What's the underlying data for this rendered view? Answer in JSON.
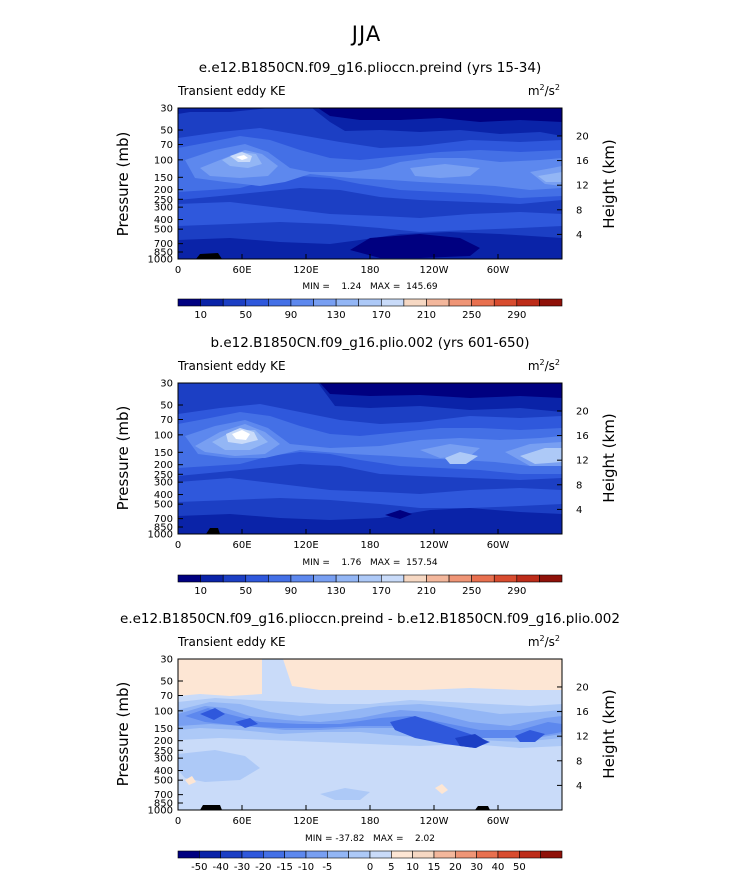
{
  "figure": {
    "super_title": "JJA",
    "ke_colors": [
      "#000080",
      "#0a23a8",
      "#1c3fc4",
      "#2f58dc",
      "#4470e6",
      "#5d88ee",
      "#789ff2",
      "#93b6f5",
      "#adc9f7",
      "#c9dbf9",
      "#f6d8c3",
      "#f3b79c",
      "#ef9576",
      "#e8704f",
      "#d84c2f",
      "#bd2c19",
      "#8f1109"
    ],
    "ke_bar_labels": [
      "10",
      "50",
      "90",
      "130",
      "170",
      "210",
      "250",
      "290"
    ],
    "diff_colors": [
      "#000080",
      "#0a23a8",
      "#1c3fc4",
      "#2f58dc",
      "#4470e6",
      "#5d88ee",
      "#789ff2",
      "#93b6f5",
      "#adc9f7",
      "#c9dbf9",
      "#fde6d4",
      "#f6d8c3",
      "#f3b79c",
      "#ef9576",
      "#e8704f",
      "#d84c2f",
      "#bd2c19",
      "#8f1109"
    ],
    "diff_bar_labels": [
      "-50",
      "-40",
      "-30",
      "-20",
      "-15",
      "-10",
      "-5",
      "0",
      "5",
      "10",
      "15",
      "20",
      "30",
      "40",
      "50"
    ]
  },
  "chart_data": [
    {
      "type": "heatmap",
      "title": "e.e12.B1850CN.f09_g16.plioccn.preind (yrs 15-34)",
      "left_label": "Transient eddy KE",
      "units": "m²/s²",
      "units_base": "m",
      "units_sup1": "2",
      "units_mid": "/s",
      "units_sup2": "2",
      "xlabel": "",
      "ylabel": "Pressure (mb)",
      "y2label": "Height (km)",
      "x_tick_labels": [
        "0",
        "60E",
        "120E",
        "180",
        "120W",
        "60W"
      ],
      "y_tick_labels": [
        "30",
        "50",
        "70",
        "100",
        "150",
        "200",
        "250",
        "300",
        "400",
        "500",
        "700",
        "850",
        "1000"
      ],
      "y2_tick_labels": [
        "4",
        "8",
        "12",
        "16",
        "20"
      ],
      "stats": "MIN =    1.24   MAX =  145.69",
      "min": 1.24,
      "max": 145.69,
      "levels": [
        10,
        30,
        50,
        70,
        90,
        110,
        130,
        150,
        170,
        190,
        210,
        230,
        250,
        270,
        290
      ]
    },
    {
      "type": "heatmap",
      "title": "b.e12.B1850CN.f09_g16.plio.002 (yrs 601-650)",
      "left_label": "Transient eddy KE",
      "units": "m²/s²",
      "units_base": "m",
      "units_sup1": "2",
      "units_mid": "/s",
      "units_sup2": "2",
      "xlabel": "",
      "ylabel": "Pressure (mb)",
      "y2label": "Height (km)",
      "x_tick_labels": [
        "0",
        "60E",
        "120E",
        "180",
        "120W",
        "60W"
      ],
      "y_tick_labels": [
        "30",
        "50",
        "70",
        "100",
        "150",
        "200",
        "250",
        "300",
        "400",
        "500",
        "700",
        "850",
        "1000"
      ],
      "y2_tick_labels": [
        "4",
        "8",
        "12",
        "16",
        "20"
      ],
      "stats": "MIN =    1.76   MAX =  157.54",
      "min": 1.76,
      "max": 157.54,
      "levels": [
        10,
        30,
        50,
        70,
        90,
        110,
        130,
        150,
        170,
        190,
        210,
        230,
        250,
        270,
        290
      ]
    },
    {
      "type": "heatmap",
      "title": "e.e12.B1850CN.f09_g16.plioccn.preind - b.e12.B1850CN.f09_g16.plio.002",
      "left_label": "Transient eddy KE",
      "units": "m²/s²",
      "units_base": "m",
      "units_sup1": "2",
      "units_mid": "/s",
      "units_sup2": "2",
      "xlabel": "",
      "ylabel": "Pressure (mb)",
      "y2label": "Height (km)",
      "x_tick_labels": [
        "0",
        "60E",
        "120E",
        "180",
        "120W",
        "60W"
      ],
      "y_tick_labels": [
        "30",
        "50",
        "70",
        "100",
        "150",
        "200",
        "250",
        "300",
        "400",
        "500",
        "700",
        "850",
        "1000"
      ],
      "y2_tick_labels": [
        "4",
        "8",
        "12",
        "16",
        "20"
      ],
      "stats": "MIN = -37.82   MAX =    2.02",
      "min": -37.82,
      "max": 2.02,
      "levels": [
        -50,
        -40,
        -30,
        -20,
        -15,
        -10,
        -5,
        0,
        5,
        10,
        15,
        20,
        30,
        40,
        50
      ]
    }
  ]
}
